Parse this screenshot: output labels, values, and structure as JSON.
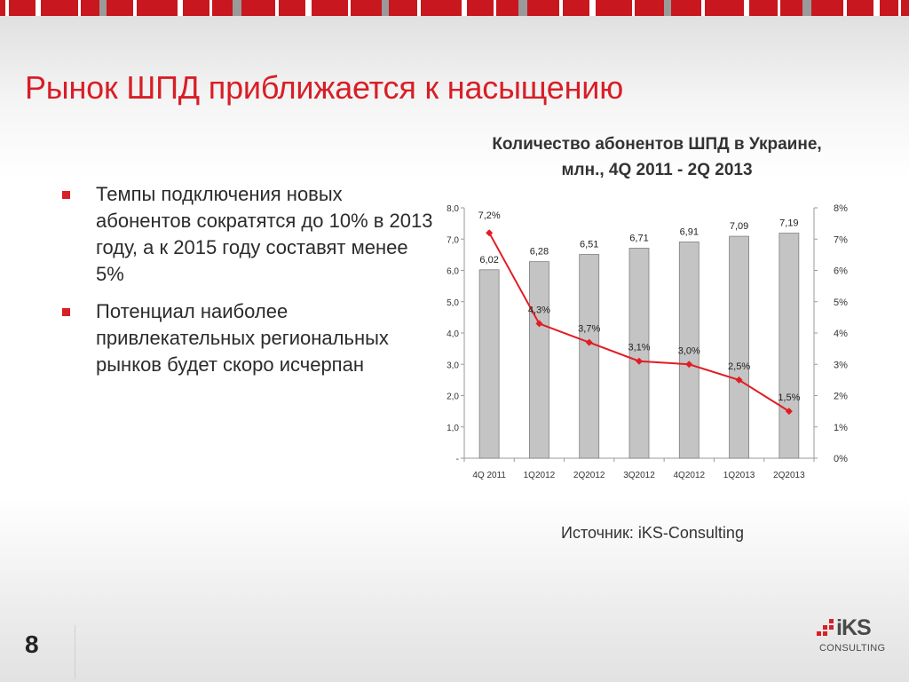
{
  "slide": {
    "title": "Рынок ШПД приближается к насыщению",
    "bullets": [
      "Темпы подключения новых абонентов сократятся до 10% в 2013 году, а к 2015 году составят менее 5%",
      "Потенциал наиболее привлекательных региональных рынков будет скоро исчерпан"
    ],
    "source": "Источник: iKS-Consulting",
    "page_number": "8",
    "logo": {
      "word": "iKS",
      "subtitle": "CONSULTING"
    }
  },
  "colors": {
    "accent": "#d81e26",
    "bar_fill": "#c4c4c4",
    "bar_stroke": "#7f7f7f",
    "line": "#e31b23",
    "stripe_red": "#c8171e",
    "stripe_gray": "#9a9a9a"
  },
  "chart_data": {
    "type": "bar",
    "title": "Количество абонентов ШПД в Украине, млн., 4Q 2011 - 2Q 2013",
    "title_lines": [
      "Количество абонентов ШПД в Украине,",
      "млн., 4Q 2011 - 2Q 2013"
    ],
    "categories": [
      "4Q 2011",
      "1Q2012",
      "2Q2012",
      "3Q2012",
      "4Q2012",
      "1Q2013",
      "2Q2013"
    ],
    "series": [
      {
        "type": "bar",
        "axis": "left",
        "values": [
          6.02,
          6.28,
          6.51,
          6.71,
          6.91,
          7.09,
          7.19
        ],
        "labels": [
          "6,02",
          "6,28",
          "6,51",
          "6,71",
          "6,91",
          "7,09",
          "7,19"
        ]
      },
      {
        "type": "line",
        "axis": "right",
        "values": [
          7.2,
          4.3,
          3.7,
          3.1,
          3.0,
          2.5,
          1.5
        ],
        "labels": [
          "7,2%",
          "4,3%",
          "3,7%",
          "3,1%",
          "3,0%",
          "2,5%",
          "1,5%"
        ]
      }
    ],
    "y_left": {
      "ylim": [
        0,
        8
      ],
      "ticks": [
        "-",
        "1,0",
        "2,0",
        "3,0",
        "4,0",
        "5,0",
        "6,0",
        "7,0",
        "8,0"
      ]
    },
    "y_right": {
      "ylim": [
        0,
        8
      ],
      "ticks": [
        "0%",
        "1%",
        "2%",
        "3%",
        "4%",
        "5%",
        "6%",
        "7%",
        "8%"
      ]
    },
    "grid": false,
    "legend": "none"
  }
}
